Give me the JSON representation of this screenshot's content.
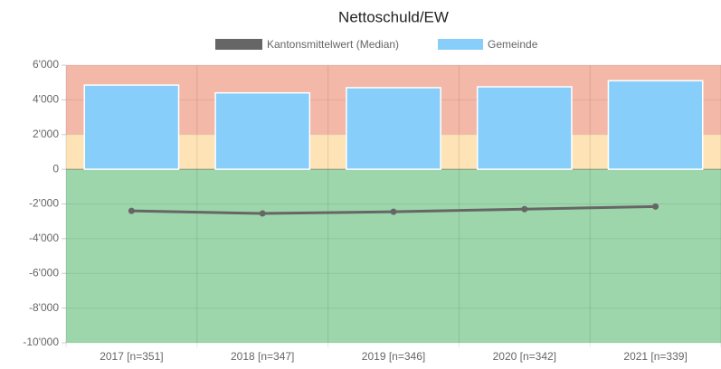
{
  "chart_data": {
    "type": "bar_line",
    "title": "Nettoschuld/EW",
    "categories": [
      "2017 [n=351]",
      "2018 [n=347]",
      "2019 [n=346]",
      "2020 [n=342]",
      "2021 [n=339]"
    ],
    "series": [
      {
        "name": "Kantonsmittelwert (Median)",
        "type": "line",
        "color": "#666666",
        "values": [
          -2400,
          -2550,
          -2450,
          -2300,
          -2150
        ]
      },
      {
        "name": "Gemeinde",
        "type": "bar",
        "color": "#87cefa",
        "values": [
          4850,
          4400,
          4700,
          4750,
          5100
        ]
      }
    ],
    "bands": [
      {
        "from": 2000,
        "to": 6000,
        "color": "#f4b8a8"
      },
      {
        "from": 0,
        "to": 2000,
        "color": "#fde3b5"
      },
      {
        "from": -10000,
        "to": 0,
        "color": "#9dd6ab"
      }
    ],
    "ylim": [
      -10000,
      6000
    ],
    "yticks": [
      {
        "value": -10000,
        "label": "-10'000"
      },
      {
        "value": -8000,
        "label": "-8'000"
      },
      {
        "value": -6000,
        "label": "-6'000"
      },
      {
        "value": -4000,
        "label": "-4'000"
      },
      {
        "value": -2000,
        "label": "-2'000"
      },
      0,
      {
        "value": 2000,
        "label": "2'000"
      },
      {
        "value": 4000,
        "label": "4'000"
      },
      {
        "value": 6000,
        "label": "6'000"
      }
    ],
    "grid": true
  }
}
